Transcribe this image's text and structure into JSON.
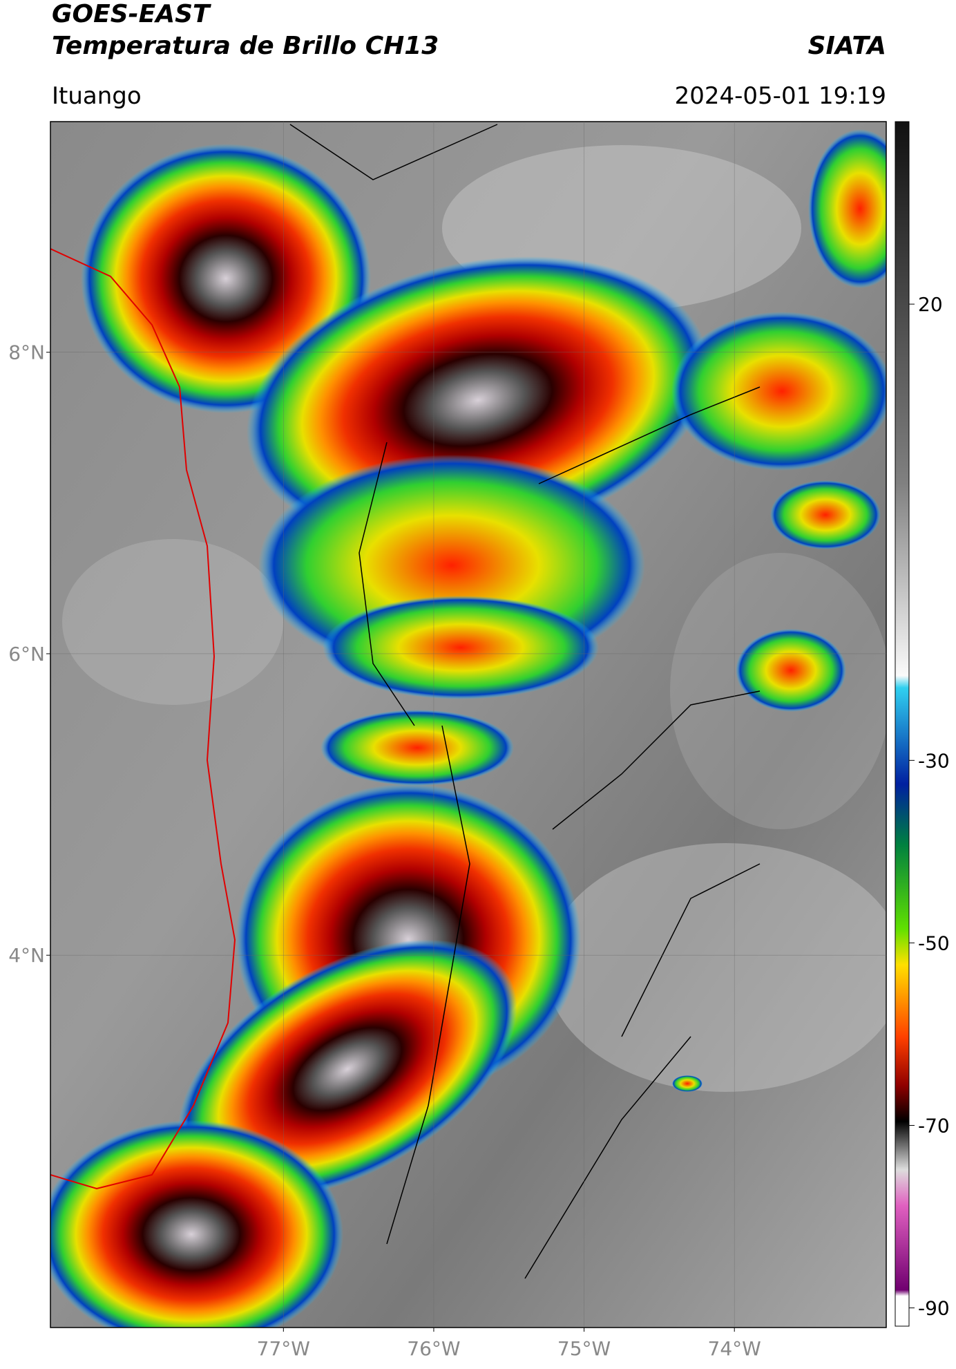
{
  "header": {
    "title": "GOES-EAST",
    "subtitle": "Temperatura de Brillo CH13",
    "organization": "SIATA",
    "location": "Ituango",
    "datetime": "2024-05-01 19:19"
  },
  "map": {
    "xlim": [
      -78.55,
      -72.99
    ],
    "ylim": [
      1.53,
      9.53
    ],
    "yticks": [
      {
        "value": 8,
        "label": "8°N"
      },
      {
        "value": 6,
        "label": "6°N"
      },
      {
        "value": 4,
        "label": "4°N"
      }
    ],
    "xticks": [
      {
        "value": -77,
        "label": "77°W"
      },
      {
        "value": -76,
        "label": "76°W"
      },
      {
        "value": -75,
        "label": "75°W"
      },
      {
        "value": -74,
        "label": "74°W"
      }
    ],
    "grid": true
  },
  "colorbar": {
    "lim": [
      -92,
      40
    ],
    "ticks": [
      20,
      -30,
      -50,
      -70,
      -90
    ]
  }
}
